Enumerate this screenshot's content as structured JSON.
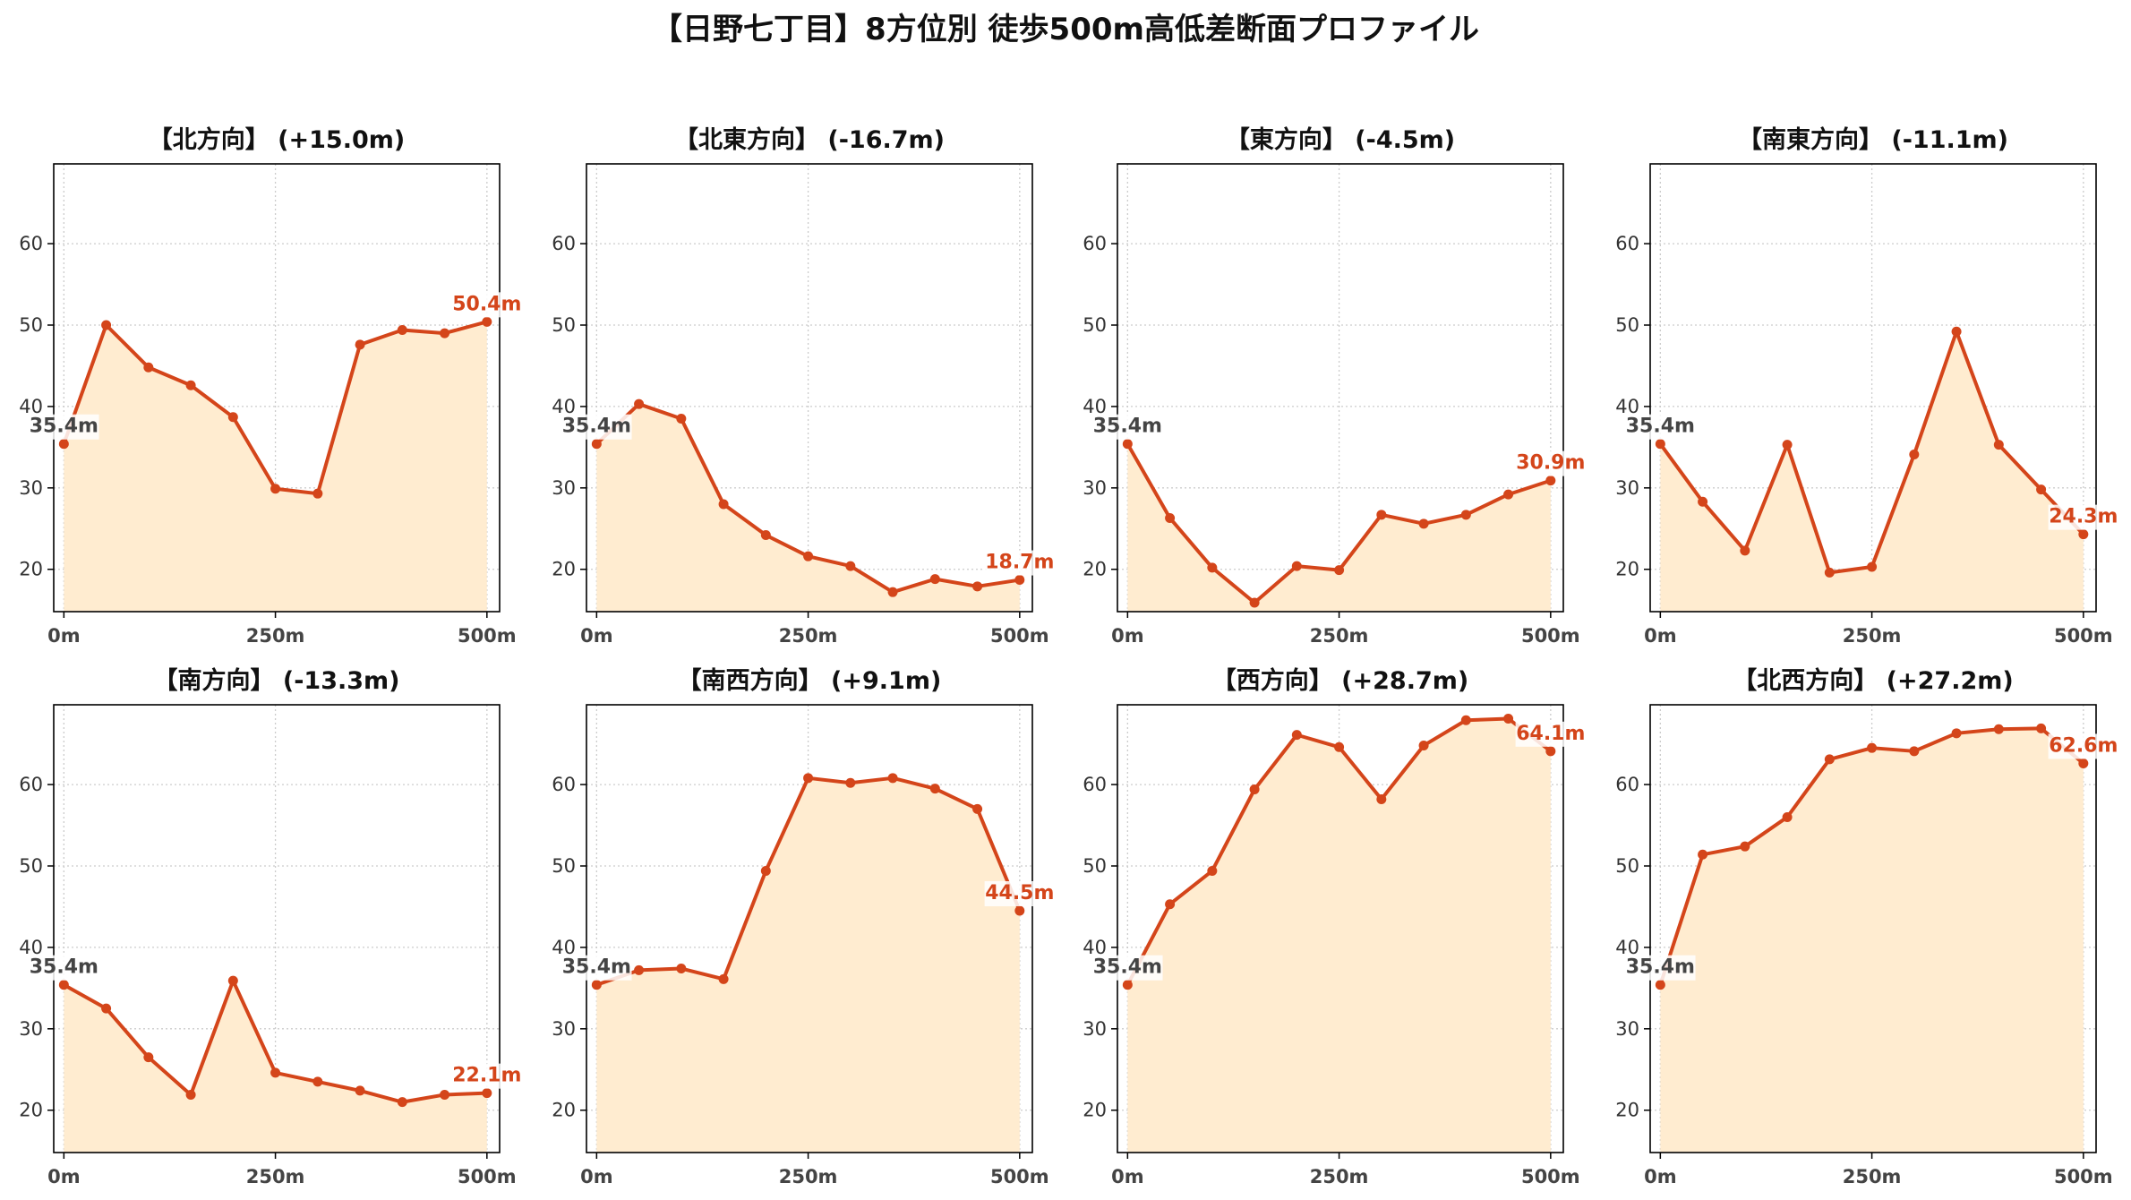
{
  "title": "【日野七丁目】8方位別 徒歩500m高低差断面プロファイル",
  "colors": {
    "line": "#d4451a",
    "fill": "#ffecd0",
    "start_label": "#444444",
    "end_label": "#d4451a",
    "grid": "#cccccc",
    "axis": "#000000",
    "tick_label": "#444444"
  },
  "chart_data": [
    {
      "type": "area",
      "title": "【北方向】 (+15.0m)",
      "x": [
        0,
        50,
        100,
        150,
        200,
        250,
        300,
        350,
        400,
        450,
        500
      ],
      "y": [
        35.4,
        50.0,
        44.8,
        42.6,
        38.7,
        29.9,
        29.3,
        47.6,
        49.4,
        49.0,
        50.4
      ],
      "start_label": "35.4m",
      "end_label": "50.4m",
      "xticks": [
        "0m",
        "250m",
        "500m"
      ],
      "yticks": [
        "20",
        "30",
        "40",
        "50",
        "60"
      ],
      "xlim": [
        -12,
        515
      ],
      "ylim": [
        14.8,
        69.8
      ],
      "grid": true
    },
    {
      "type": "area",
      "title": "【北東方向】 (-16.7m)",
      "x": [
        0,
        50,
        100,
        150,
        200,
        250,
        300,
        350,
        400,
        450,
        500
      ],
      "y": [
        35.4,
        40.3,
        38.5,
        28.0,
        24.2,
        21.6,
        20.4,
        17.2,
        18.8,
        17.9,
        18.7
      ],
      "start_label": "35.4m",
      "end_label": "18.7m",
      "xticks": [
        "0m",
        "250m",
        "500m"
      ],
      "yticks": [
        "20",
        "30",
        "40",
        "50",
        "60"
      ],
      "xlim": [
        -12,
        515
      ],
      "ylim": [
        14.8,
        69.8
      ],
      "grid": true
    },
    {
      "type": "area",
      "title": "【東方向】 (-4.5m)",
      "x": [
        0,
        50,
        100,
        150,
        200,
        250,
        300,
        350,
        400,
        450,
        500
      ],
      "y": [
        35.4,
        26.3,
        20.2,
        15.9,
        20.4,
        19.9,
        26.7,
        25.6,
        26.7,
        29.2,
        30.9
      ],
      "start_label": "35.4m",
      "end_label": "30.9m",
      "xticks": [
        "0m",
        "250m",
        "500m"
      ],
      "yticks": [
        "20",
        "30",
        "40",
        "50",
        "60"
      ],
      "xlim": [
        -12,
        515
      ],
      "ylim": [
        14.8,
        69.8
      ],
      "grid": true
    },
    {
      "type": "area",
      "title": "【南東方向】 (-11.1m)",
      "x": [
        0,
        50,
        100,
        150,
        200,
        250,
        300,
        350,
        400,
        450,
        500
      ],
      "y": [
        35.4,
        28.3,
        22.3,
        35.3,
        19.6,
        20.3,
        34.1,
        49.2,
        35.3,
        29.8,
        24.3
      ],
      "start_label": "35.4m",
      "end_label": "24.3m",
      "xticks": [
        "0m",
        "250m",
        "500m"
      ],
      "yticks": [
        "20",
        "30",
        "40",
        "50",
        "60"
      ],
      "xlim": [
        -12,
        515
      ],
      "ylim": [
        14.8,
        69.8
      ],
      "grid": true
    },
    {
      "type": "area",
      "title": "【南方向】 (-13.3m)",
      "x": [
        0,
        50,
        100,
        150,
        200,
        250,
        300,
        350,
        400,
        450,
        500
      ],
      "y": [
        35.4,
        32.5,
        26.5,
        21.9,
        35.9,
        24.6,
        23.5,
        22.4,
        21.0,
        21.9,
        22.1
      ],
      "start_label": "35.4m",
      "end_label": "22.1m",
      "xticks": [
        "0m",
        "250m",
        "500m"
      ],
      "yticks": [
        "20",
        "30",
        "40",
        "50",
        "60"
      ],
      "xlim": [
        -12,
        515
      ],
      "ylim": [
        14.8,
        69.8
      ],
      "grid": true
    },
    {
      "type": "area",
      "title": "【南西方向】 (+9.1m)",
      "x": [
        0,
        50,
        100,
        150,
        200,
        250,
        300,
        350,
        400,
        450,
        500
      ],
      "y": [
        35.4,
        37.2,
        37.4,
        36.1,
        49.4,
        60.8,
        60.2,
        60.8,
        59.5,
        57.0,
        44.5
      ],
      "start_label": "35.4m",
      "end_label": "44.5m",
      "xticks": [
        "0m",
        "250m",
        "500m"
      ],
      "yticks": [
        "20",
        "30",
        "40",
        "50",
        "60"
      ],
      "xlim": [
        -12,
        515
      ],
      "ylim": [
        14.8,
        69.8
      ],
      "grid": true
    },
    {
      "type": "area",
      "title": "【西方向】 (+28.7m)",
      "x": [
        0,
        50,
        100,
        150,
        200,
        250,
        300,
        350,
        400,
        450,
        500
      ],
      "y": [
        35.4,
        45.3,
        49.4,
        59.4,
        66.1,
        64.6,
        58.2,
        64.8,
        67.9,
        68.1,
        64.1
      ],
      "start_label": "35.4m",
      "end_label": "64.1m",
      "xticks": [
        "0m",
        "250m",
        "500m"
      ],
      "yticks": [
        "20",
        "30",
        "40",
        "50",
        "60"
      ],
      "xlim": [
        -12,
        515
      ],
      "ylim": [
        14.8,
        69.8
      ],
      "grid": true
    },
    {
      "type": "area",
      "title": "【北西方向】 (+27.2m)",
      "x": [
        0,
        50,
        100,
        150,
        200,
        250,
        300,
        350,
        400,
        450,
        500
      ],
      "y": [
        35.4,
        51.4,
        52.4,
        56.0,
        63.1,
        64.5,
        64.1,
        66.3,
        66.8,
        66.9,
        62.6
      ],
      "start_label": "35.4m",
      "end_label": "62.6m",
      "xticks": [
        "0m",
        "250m",
        "500m"
      ],
      "yticks": [
        "20",
        "30",
        "40",
        "50",
        "60"
      ],
      "xlim": [
        -12,
        515
      ],
      "ylim": [
        14.8,
        69.8
      ],
      "grid": true
    }
  ]
}
